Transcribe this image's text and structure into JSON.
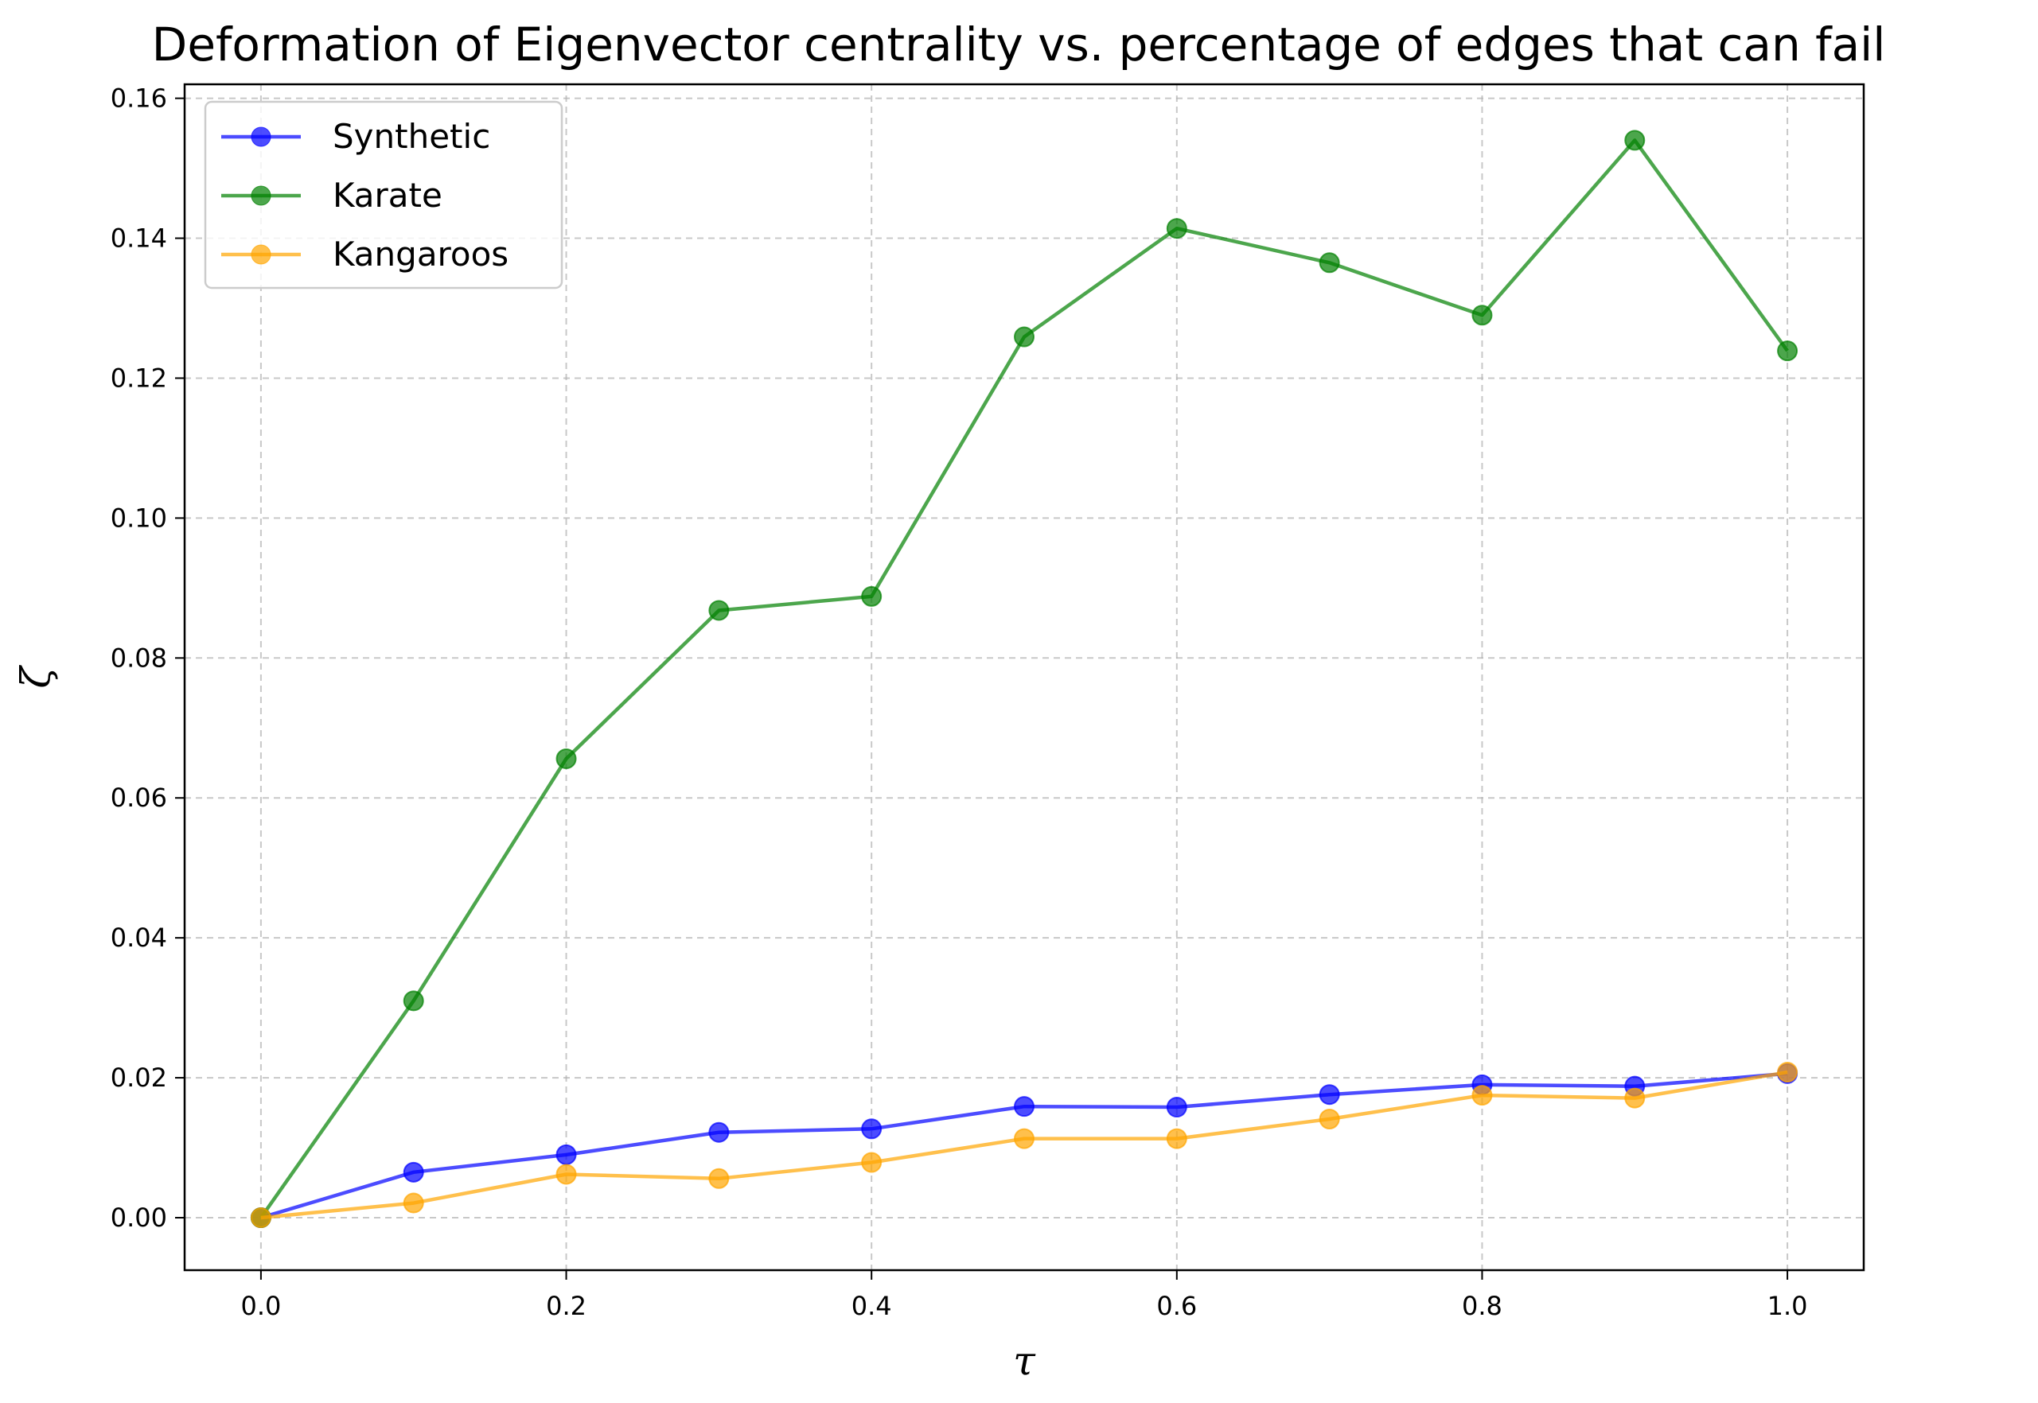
{
  "chart_data": {
    "type": "line",
    "title": "Deformation of Eigenvector centrality vs. percentage of edges that can fail",
    "xlabel": "τ",
    "ylabel": "ζ",
    "x": [
      0.0,
      0.1,
      0.2,
      0.3,
      0.4,
      0.5,
      0.6,
      0.7,
      0.8,
      0.9,
      1.0
    ],
    "xlim": [
      -0.05,
      1.05
    ],
    "ylim": [
      -0.0075,
      0.162
    ],
    "xticks": [
      0.0,
      0.2,
      0.4,
      0.6,
      0.8,
      1.0
    ],
    "xtick_labels": [
      "0.0",
      "0.2",
      "0.4",
      "0.6",
      "0.8",
      "1.0"
    ],
    "yticks": [
      0.0,
      0.02,
      0.04,
      0.06,
      0.08,
      0.1,
      0.12,
      0.14,
      0.16
    ],
    "ytick_labels": [
      "0.00",
      "0.02",
      "0.04",
      "0.06",
      "0.08",
      "0.10",
      "0.12",
      "0.14",
      "0.16"
    ],
    "grid": true,
    "legend_position": "upper-left",
    "series": [
      {
        "name": "Synthetic",
        "color": "#0000ff",
        "values": [
          0.0,
          0.0065,
          0.009,
          0.0122,
          0.0127,
          0.0159,
          0.0158,
          0.0176,
          0.019,
          0.0188,
          0.0206
        ]
      },
      {
        "name": "Karate",
        "color": "#008000",
        "values": [
          0.0,
          0.031,
          0.0656,
          0.0868,
          0.0888,
          0.1259,
          0.1414,
          0.1365,
          0.129,
          0.154,
          0.1239
        ]
      },
      {
        "name": "Kangaroos",
        "color": "#ffa500",
        "values": [
          0.0,
          0.0021,
          0.0062,
          0.0056,
          0.0079,
          0.0113,
          0.0113,
          0.0141,
          0.0175,
          0.0171,
          0.0208
        ]
      }
    ]
  }
}
